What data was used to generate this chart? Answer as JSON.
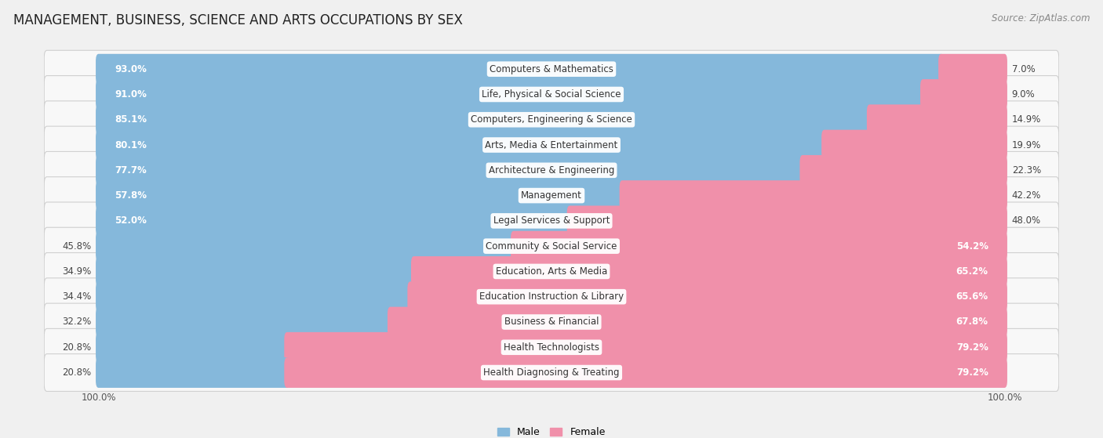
{
  "title": "MANAGEMENT, BUSINESS, SCIENCE AND ARTS OCCUPATIONS BY SEX",
  "source": "Source: ZipAtlas.com",
  "categories": [
    "Computers & Mathematics",
    "Life, Physical & Social Science",
    "Computers, Engineering & Science",
    "Arts, Media & Entertainment",
    "Architecture & Engineering",
    "Management",
    "Legal Services & Support",
    "Community & Social Service",
    "Education, Arts & Media",
    "Education Instruction & Library",
    "Business & Financial",
    "Health Technologists",
    "Health Diagnosing & Treating"
  ],
  "male_pct": [
    93.0,
    91.0,
    85.1,
    80.1,
    77.7,
    57.8,
    52.0,
    45.8,
    34.9,
    34.4,
    32.2,
    20.8,
    20.8
  ],
  "female_pct": [
    7.0,
    9.0,
    14.9,
    19.9,
    22.3,
    42.2,
    48.0,
    54.2,
    65.2,
    65.6,
    67.8,
    79.2,
    79.2
  ],
  "male_color": "#85b8db",
  "female_color": "#f090aa",
  "bg_color": "#f0f0f0",
  "row_bg_color": "#e8e8e8",
  "bar_bg_color": "#f8f8f8",
  "title_fontsize": 12,
  "label_fontsize": 8.5,
  "source_fontsize": 8.5,
  "legend_fontsize": 9,
  "axis_label_fontsize": 8.5
}
